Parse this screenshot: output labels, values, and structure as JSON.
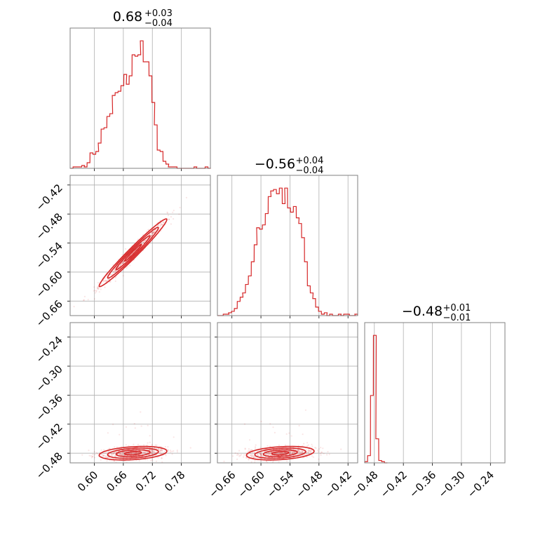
{
  "chart_data": {
    "type": "corner",
    "color": "#d62728",
    "grid": true,
    "parameters": [
      {
        "index": 0,
        "median": "0.68",
        "plus": "+0.03",
        "minus": "−0.04",
        "range": [
          0.55,
          0.84
        ],
        "ticks": [
          "0.60",
          "0.66",
          "0.72",
          "0.78"
        ],
        "tick_values": [
          0.6,
          0.66,
          0.72,
          0.78
        ]
      },
      {
        "index": 1,
        "median": "−0.56",
        "plus": "+0.04",
        "minus": "−0.04",
        "range": [
          -0.69,
          -0.4
        ],
        "ticks": [
          "−0.66",
          "−0.60",
          "−0.54",
          "−0.48",
          "−0.42"
        ],
        "tick_values": [
          -0.66,
          -0.6,
          -0.54,
          -0.48,
          -0.42
        ]
      },
      {
        "index": 2,
        "median": "−0.48",
        "plus": "+0.01",
        "minus": "−0.01",
        "range": [
          -0.5,
          -0.21
        ],
        "ticks": [
          "−0.48",
          "−0.42",
          "−0.36",
          "−0.30",
          "−0.24"
        ],
        "tick_values": [
          -0.48,
          -0.42,
          -0.36,
          -0.3,
          -0.24
        ]
      }
    ],
    "histograms": [
      {
        "param": 0,
        "bin_width": 0.0058,
        "x": [
          0.553,
          0.559,
          0.565,
          0.571,
          0.577,
          0.582,
          0.588,
          0.594,
          0.6,
          0.606,
          0.611,
          0.617,
          0.623,
          0.629,
          0.635,
          0.64,
          0.646,
          0.652,
          0.658,
          0.664,
          0.669,
          0.675,
          0.681,
          0.687,
          0.693,
          0.698,
          0.704,
          0.71,
          0.716,
          0.722,
          0.727,
          0.733,
          0.739,
          0.745,
          0.751,
          0.756,
          0.762,
          0.768,
          0.774,
          0.78,
          0.785,
          0.791,
          0.797,
          0.803,
          0.809,
          0.814,
          0.82,
          0.826,
          0.832,
          0.838
        ],
        "counts": [
          0,
          1,
          1,
          1,
          2,
          1,
          4,
          11,
          10,
          12,
          18,
          28,
          29,
          37,
          39,
          52,
          54,
          55,
          59,
          67,
          60,
          66,
          81,
          80,
          81,
          91,
          76,
          76,
          66,
          47,
          31,
          13,
          12,
          5,
          3,
          1,
          1,
          1,
          0,
          0,
          0,
          0,
          0,
          0,
          1,
          0,
          0,
          0,
          1,
          0
        ]
      },
      {
        "param": 1,
        "bin_width": 0.0058,
        "x": [
          -0.687,
          -0.681,
          -0.675,
          -0.669,
          -0.664,
          -0.658,
          -0.652,
          -0.646,
          -0.64,
          -0.635,
          -0.629,
          -0.623,
          -0.617,
          -0.611,
          -0.606,
          -0.6,
          -0.594,
          -0.588,
          -0.582,
          -0.577,
          -0.571,
          -0.565,
          -0.559,
          -0.553,
          -0.548,
          -0.542,
          -0.536,
          -0.53,
          -0.524,
          -0.519,
          -0.513,
          -0.507,
          -0.501,
          -0.495,
          -0.49,
          -0.484,
          -0.478,
          -0.472,
          -0.466,
          -0.461,
          -0.455,
          -0.449,
          -0.443,
          -0.437,
          -0.432,
          -0.426,
          -0.42,
          -0.414,
          -0.408,
          -0.403
        ],
        "counts": [
          0,
          0,
          1,
          1,
          2,
          3,
          5,
          10,
          13,
          16,
          22,
          28,
          38,
          50,
          62,
          61,
          64,
          72,
          84,
          88,
          89,
          86,
          90,
          79,
          90,
          76,
          73,
          77,
          69,
          65,
          55,
          38,
          21,
          16,
          12,
          6,
          3,
          1,
          2,
          0,
          1,
          0,
          0,
          1,
          0,
          1,
          1,
          0,
          0,
          1
        ]
      },
      {
        "param": 2,
        "bin_width": 0.0058,
        "x": [
          -0.497,
          -0.491,
          -0.485,
          -0.479,
          -0.474,
          -0.468,
          -0.462,
          -0.456
        ],
        "counts": [
          1,
          6,
          56,
          106,
          20,
          2,
          1,
          0
        ]
      }
    ],
    "scatter_panels": [
      {
        "x_param": 0,
        "y_param": 1,
        "center": [
          0.68,
          -0.56
        ],
        "correlation": 0.98
      },
      {
        "x_param": 0,
        "y_param": 2,
        "center": [
          0.68,
          -0.48
        ],
        "correlation": 0.3
      },
      {
        "x_param": 1,
        "y_param": 2,
        "center": [
          -0.56,
          -0.48
        ],
        "correlation": 0.3
      }
    ]
  }
}
